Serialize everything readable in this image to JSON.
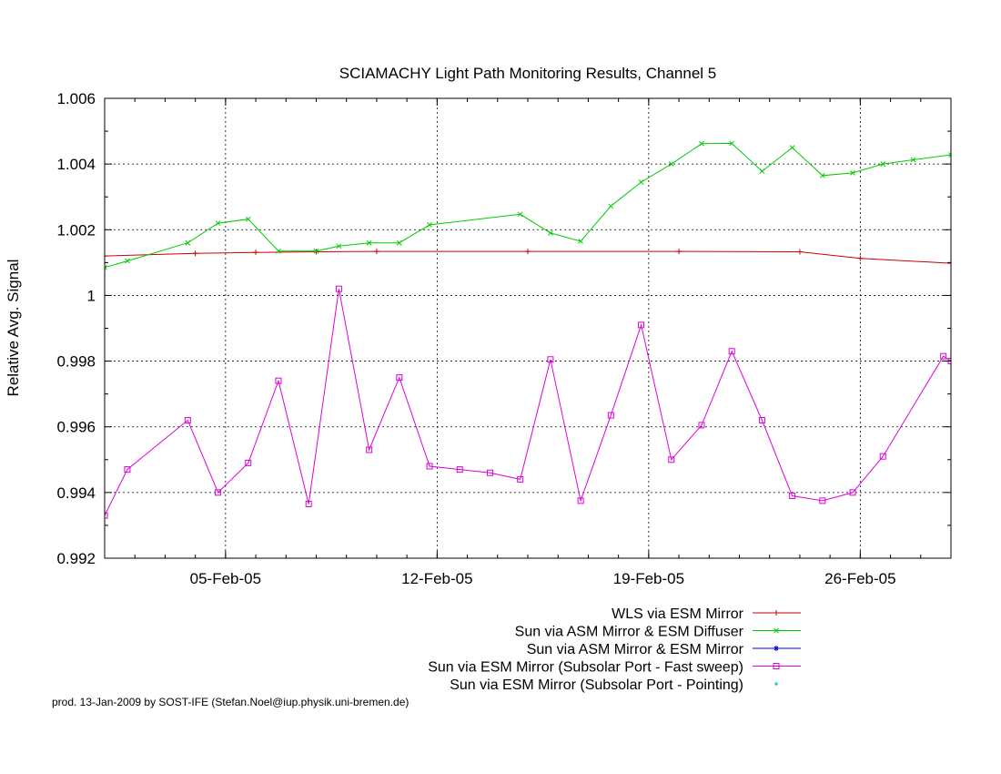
{
  "chart_data": {
    "type": "line",
    "title": "SCIAMACHY Light Path Monitoring Results, Channel 5",
    "ylabel": "Relative Avg. Signal",
    "xlabel": "",
    "xlim": [
      "2005-02-01",
      "2005-03-01"
    ],
    "ylim": [
      0.992,
      1.006
    ],
    "x_ticks": [
      {
        "date": "2005-02-05",
        "label": "05-Feb-05"
      },
      {
        "date": "2005-02-12",
        "label": "12-Feb-05"
      },
      {
        "date": "2005-02-19",
        "label": "19-Feb-05"
      },
      {
        "date": "2005-02-26",
        "label": "26-Feb-05"
      }
    ],
    "y_ticks": [
      {
        "value": 0.992,
        "label": "0.992"
      },
      {
        "value": 0.994,
        "label": "0.994"
      },
      {
        "value": 0.996,
        "label": "0.996"
      },
      {
        "value": 0.998,
        "label": "0.998"
      },
      {
        "value": 1.0,
        "label": "1"
      },
      {
        "value": 1.002,
        "label": "1.002"
      },
      {
        "value": 1.004,
        "label": "1.004"
      },
      {
        "value": 1.006,
        "label": "1.006"
      }
    ],
    "grid": true,
    "legend_position": "bottom-right",
    "series": [
      {
        "name": "WLS via ESM Mirror",
        "color": "#cc0000",
        "marker": "plus",
        "x": [
          "2005-02-01T00:00",
          "2005-02-04T00:00",
          "2005-02-06T00:00",
          "2005-02-08T00:00",
          "2005-02-10T00:00",
          "2005-02-15T00:00",
          "2005-02-20T00:00",
          "2005-02-24T00:00",
          "2005-02-26T00:00",
          "2005-03-01T00:00"
        ],
        "y": [
          1.0012,
          1.00128,
          1.00131,
          1.00133,
          1.00134,
          1.00134,
          1.00134,
          1.00133,
          1.00113,
          1.00098
        ]
      },
      {
        "name": "Sun via ASM Mirror & ESM Diffuser",
        "color": "#00cc00",
        "marker": "x",
        "x": [
          "2005-02-01T00:00",
          "2005-02-01T18:00",
          "2005-02-03T18:00",
          "2005-02-04T18:00",
          "2005-02-05T18:00",
          "2005-02-06T18:00",
          "2005-02-08T00:00",
          "2005-02-08T18:00",
          "2005-02-09T18:00",
          "2005-02-10T18:00",
          "2005-02-11T18:00",
          "2005-02-14T18:00",
          "2005-02-15T18:00",
          "2005-02-16T18:00",
          "2005-02-17T18:00",
          "2005-02-18T18:00",
          "2005-02-19T18:00",
          "2005-02-20T18:00",
          "2005-02-21T18:00",
          "2005-02-22T18:00",
          "2005-02-23T18:00",
          "2005-02-24T18:00",
          "2005-02-25T18:00",
          "2005-02-26T18:00",
          "2005-02-27T18:00",
          "2005-03-01T00:00"
        ],
        "y": [
          1.00085,
          1.00105,
          1.0016,
          1.0022,
          1.00232,
          1.00135,
          1.00135,
          1.0015,
          1.0016,
          1.0016,
          1.00215,
          1.00247,
          1.0019,
          1.00165,
          1.00272,
          1.00345,
          1.004,
          1.00462,
          1.00463,
          1.00378,
          1.0045,
          1.00365,
          1.00373,
          1.004,
          1.00413,
          1.00428
        ]
      },
      {
        "name": "Sun via ASM Mirror & ESM Mirror",
        "color": "#0000cc",
        "marker": "star",
        "x": [],
        "y": []
      },
      {
        "name": "Sun via ESM Mirror (Subsolar Port - Fast sweep)",
        "color": "#dd00dd",
        "marker": "square",
        "x": [
          "2005-02-01T00:00",
          "2005-02-01T18:00",
          "2005-02-03T18:00",
          "2005-02-04T18:00",
          "2005-02-05T18:00",
          "2005-02-06T18:00",
          "2005-02-07T18:00",
          "2005-02-08T18:00",
          "2005-02-09T18:00",
          "2005-02-10T18:00",
          "2005-02-11T18:00",
          "2005-02-12T18:00",
          "2005-02-13T18:00",
          "2005-02-14T18:00",
          "2005-02-15T18:00",
          "2005-02-16T18:00",
          "2005-02-17T18:00",
          "2005-02-18T18:00",
          "2005-02-19T18:00",
          "2005-02-20T18:00",
          "2005-02-21T18:00",
          "2005-02-22T18:00",
          "2005-02-23T18:00",
          "2005-02-24T18:00",
          "2005-02-25T18:00",
          "2005-02-26T18:00",
          "2005-02-28T18:00",
          "2005-03-01T00:00"
        ],
        "y": [
          0.9933,
          0.9947,
          0.9962,
          0.994,
          0.9949,
          0.9974,
          0.99365,
          1.0002,
          0.9953,
          0.9975,
          0.9948,
          0.9947,
          0.9946,
          0.9944,
          0.99805,
          0.99375,
          0.99635,
          0.9991,
          0.995,
          0.99605,
          0.9983,
          0.9962,
          0.9939,
          0.99375,
          0.994,
          0.9951,
          0.99815,
          0.998
        ]
      },
      {
        "name": "Sun via ESM Mirror (Subsolar Port - Pointing)",
        "color": "#00cccc",
        "marker": "dot",
        "x": [],
        "y": []
      }
    ],
    "footer": "prod. 13-Jan-2009 by SOST-IFE (Stefan.Noel@iup.physik.uni-bremen.de)"
  }
}
